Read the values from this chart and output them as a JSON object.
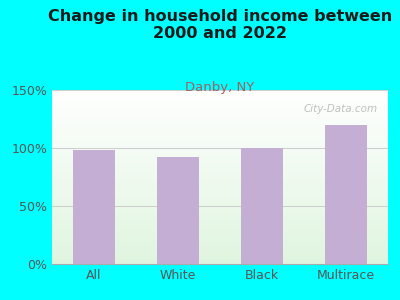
{
  "title": "Change in household income between\n2000 and 2022",
  "subtitle": "Danby, NY",
  "categories": [
    "All",
    "White",
    "Black",
    "Multirace"
  ],
  "values": [
    98,
    92,
    100,
    120
  ],
  "bar_color": "#c4aed4",
  "title_fontsize": 11.5,
  "subtitle_fontsize": 9.5,
  "subtitle_color": "#a06060",
  "title_color": "#1a1a1a",
  "tick_label_fontsize": 9,
  "ylim": [
    0,
    150
  ],
  "yticks": [
    0,
    50,
    100,
    150
  ],
  "ytick_labels": [
    "0%",
    "50%",
    "100%",
    "150%"
  ],
  "bg_outer": "#00ffff",
  "watermark": "City-Data.com",
  "grid_color": "#cccccc"
}
